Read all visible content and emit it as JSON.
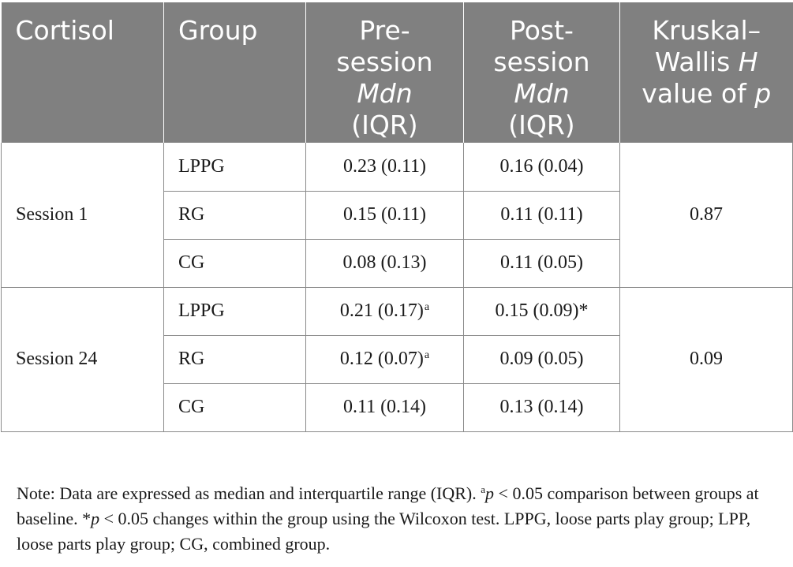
{
  "table": {
    "headers": {
      "cortisol": "Cortisol",
      "group": "Group",
      "pre_line1": "Pre-",
      "pre_line2": "session",
      "pre_line3": "Mdn",
      "pre_line4": "(IQR)",
      "post_line1": "Post-",
      "post_line2": "session",
      "post_line3": "Mdn",
      "post_line4": "(IQR)",
      "kw_line1": "Kruskal–",
      "kw_line2_a": "Wallis ",
      "kw_line2_b": "H",
      "kw_line3_a": "value of ",
      "kw_line3_b": "p"
    },
    "sessions": [
      {
        "label": "Session 1",
        "p_value": "0.87",
        "rows": [
          {
            "group": "LPPG",
            "pre": "0.23 (0.11)",
            "pre_mark": "",
            "post": "0.16 (0.04)"
          },
          {
            "group": "RG",
            "pre": "0.15 (0.11)",
            "pre_mark": "",
            "post": "0.11 (0.11)"
          },
          {
            "group": "CG",
            "pre": "0.08 (0.13)",
            "pre_mark": "",
            "post": "0.11 (0.05)"
          }
        ]
      },
      {
        "label": "Session 24",
        "p_value": "0.09",
        "rows": [
          {
            "group": "LPPG",
            "pre": "0.21 (0.17)",
            "pre_mark": "a",
            "post": "0.15 (0.09)*"
          },
          {
            "group": "RG",
            "pre": "0.12 (0.07)",
            "pre_mark": "a",
            "post": "0.09 (0.05)"
          },
          {
            "group": "CG",
            "pre": "0.11 (0.14)",
            "pre_mark": "",
            "post": "0.13 (0.14)"
          }
        ]
      }
    ]
  },
  "note": {
    "part1": "Note: Data are expressed as median and interquartile range (IQR). ",
    "sup_a": "a",
    "p1": "p",
    "part2": " < 0.05 comparison between groups at baseline. *",
    "p2": "p",
    "part3": " < 0.05 changes within the group using the Wilcoxon test. LPPG, loose parts play group; LPP, loose parts play group; CG, combined group."
  }
}
